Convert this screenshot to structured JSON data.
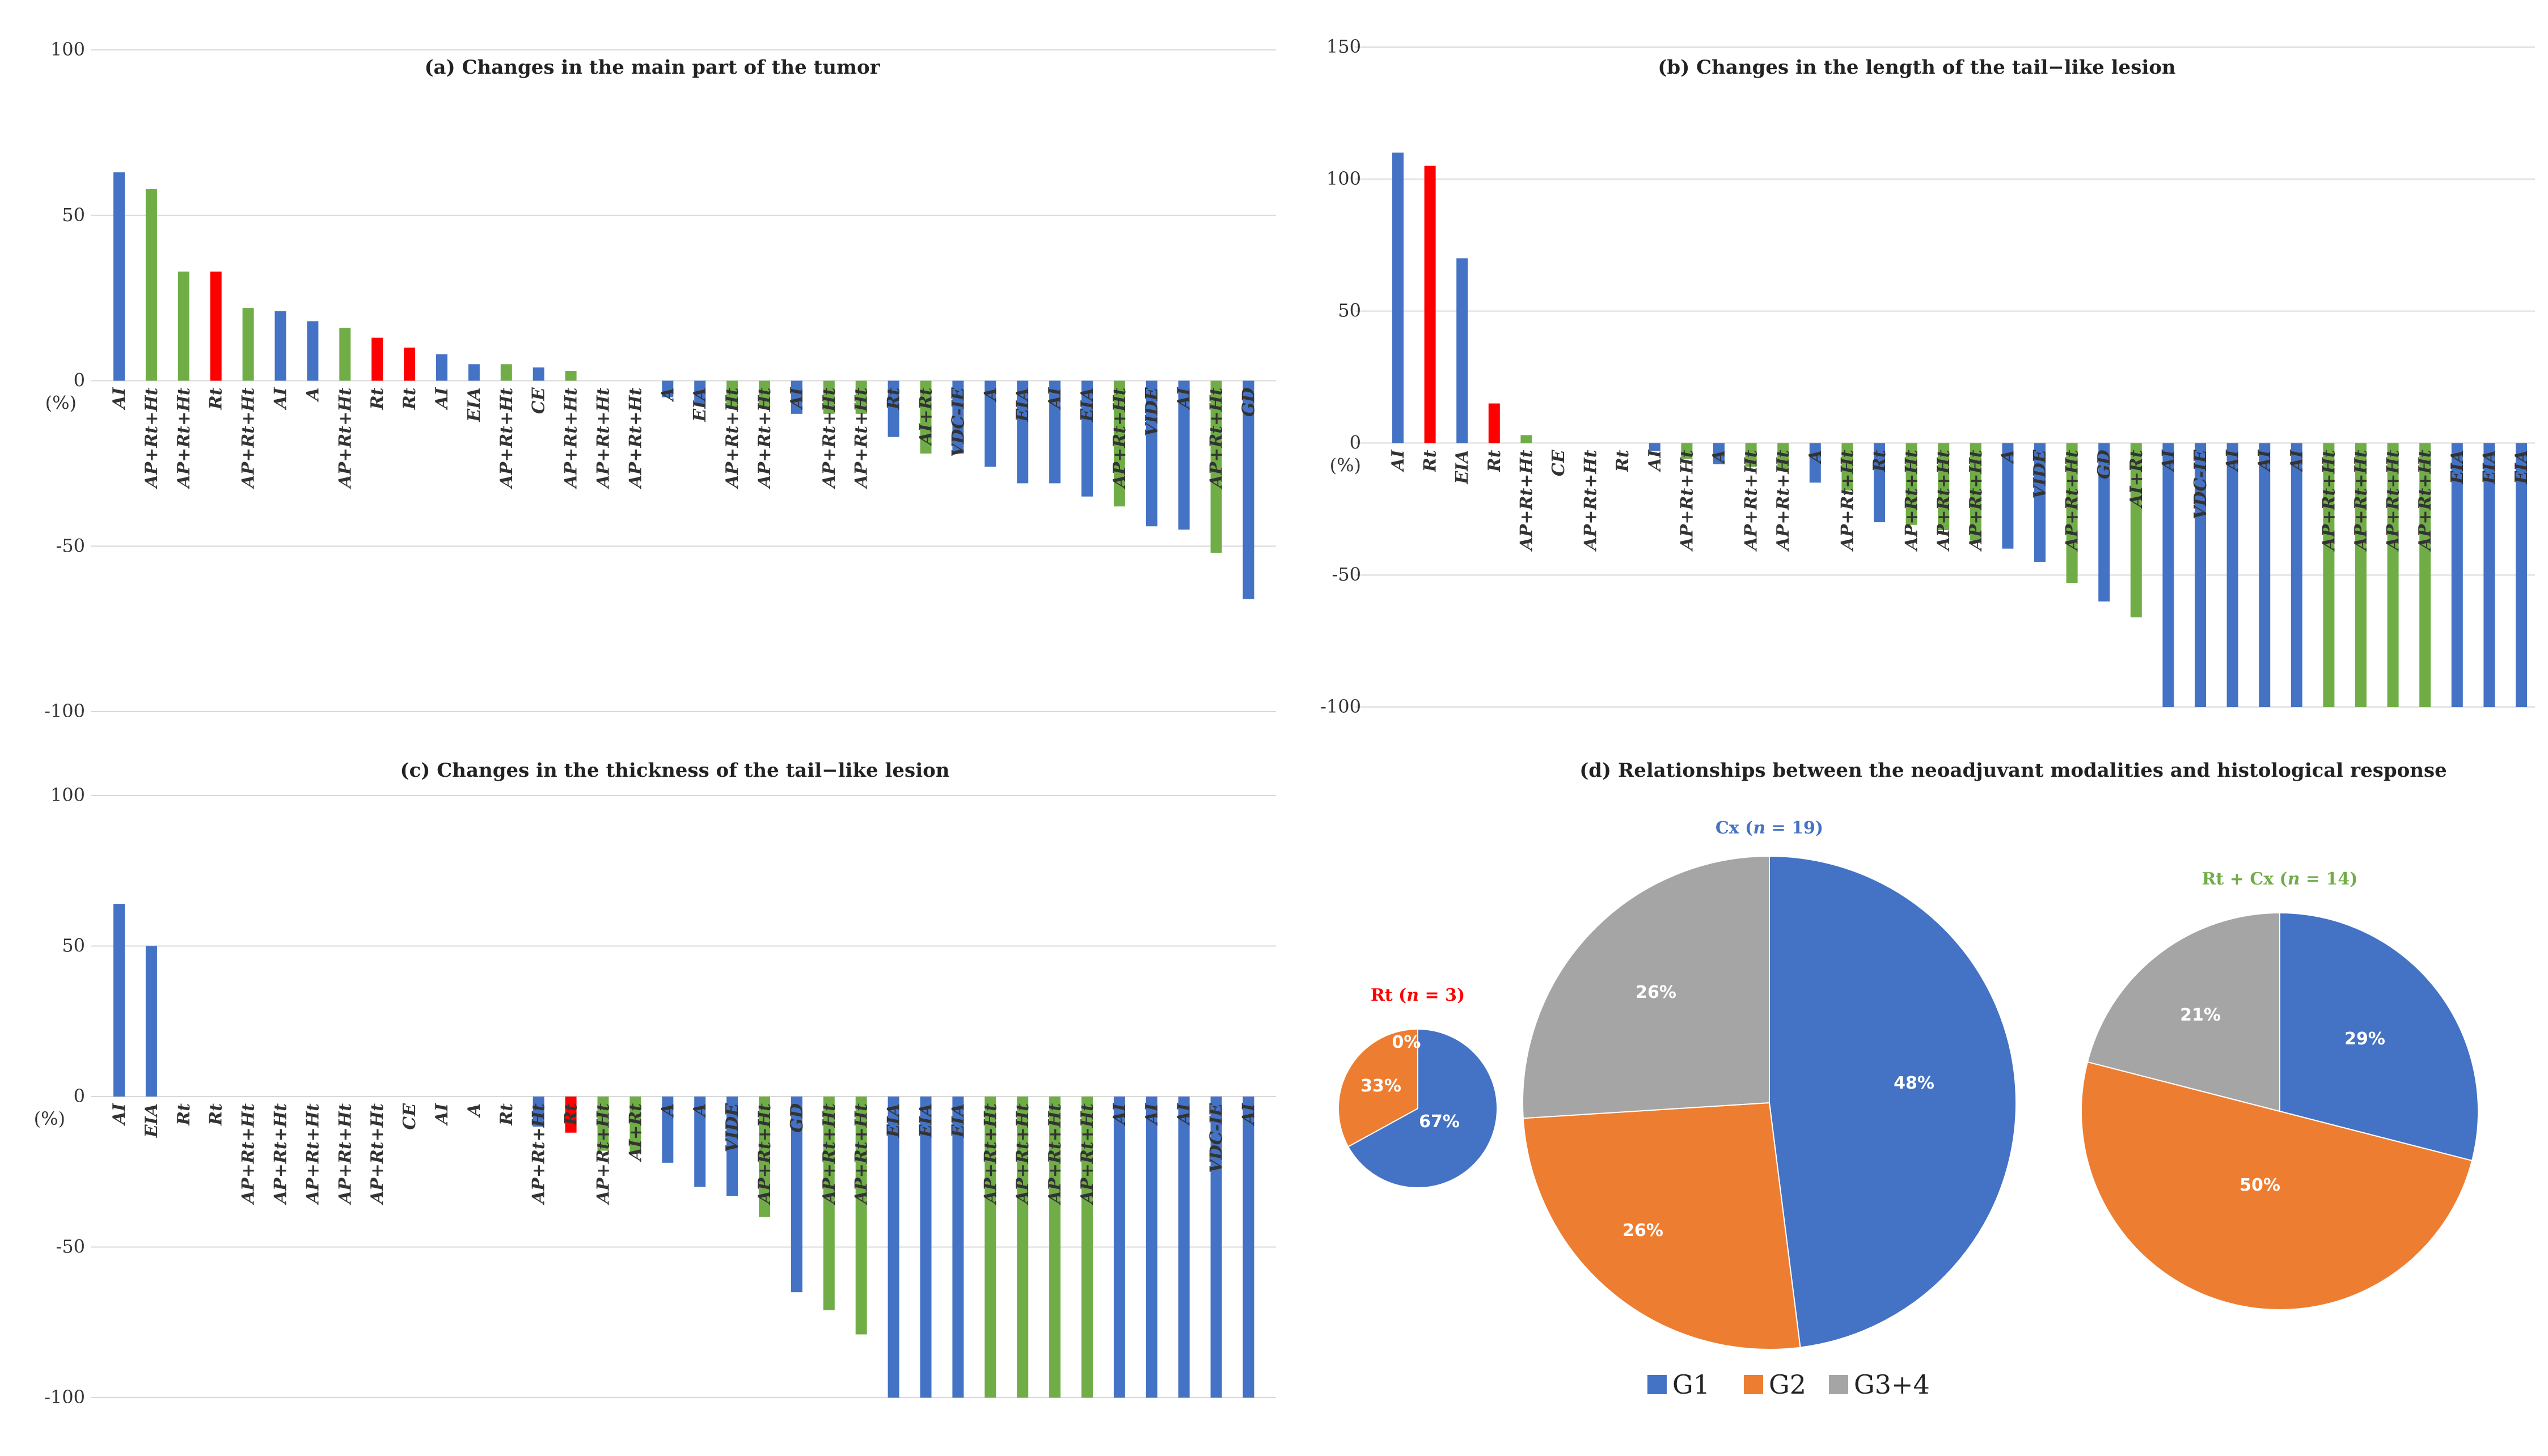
{
  "colors": {
    "blue": "#4472C4",
    "green": "#70AD47",
    "red": "#FF0000",
    "orange": "#ED7D31",
    "gray": "#A5A5A5",
    "grid": "#D9D9D9"
  },
  "unit_label": "(%)",
  "chart_data": [
    {
      "id": "a",
      "type": "bar",
      "title": "(a) Changes in the main part of the tumor",
      "ylim": [
        -100,
        100
      ],
      "yticks": [
        "100",
        "50",
        "0",
        "-50",
        "-100"
      ],
      "tick_values": [
        100,
        50,
        0,
        -50,
        -100
      ],
      "categories": [
        "AI",
        "AP+Rt+Ht",
        "AP+Rt+Ht",
        "Rt",
        "AP+Rt+Ht",
        "AI",
        "A",
        "AP+Rt+Ht",
        "Rt",
        "Rt",
        "AI",
        "EIA",
        "AP+Rt+Ht",
        "CE",
        "AP+Rt+Ht",
        "AP+Rt+Ht",
        "AP+Rt+Ht",
        "A",
        "EIA",
        "AP+Rt+Ht",
        "AP+Rt+Ht",
        "AI",
        "AP+Rt+Ht",
        "AP+Rt+Ht",
        "Rt",
        "AI+Rt",
        "VDC-IE",
        "A",
        "EIA",
        "AI",
        "EIA",
        "AP+Rt+Ht",
        "VIDE",
        "AI",
        "AP+Rt+Ht",
        "GD"
      ],
      "values": [
        63,
        58,
        33,
        33,
        22,
        21,
        18,
        16,
        13,
        10,
        8,
        5,
        5,
        4,
        3,
        0,
        0,
        -5,
        -7,
        -8,
        -8,
        -10,
        -10,
        -10,
        -17,
        -22,
        -22,
        -26,
        -31,
        -31,
        -35,
        -38,
        -44,
        -45,
        -52,
        -66
      ],
      "groups": [
        "blue",
        "green",
        "green",
        "red",
        "green",
        "blue",
        "blue",
        "green",
        "red",
        "red",
        "blue",
        "blue",
        "green",
        "blue",
        "green",
        "green",
        "green",
        "blue",
        "blue",
        "green",
        "green",
        "blue",
        "green",
        "green",
        "blue",
        "green",
        "blue",
        "blue",
        "blue",
        "blue",
        "blue",
        "green",
        "blue",
        "blue",
        "green",
        "blue"
      ]
    },
    {
      "id": "b",
      "type": "bar",
      "title": "(b) Changes in the length of the tail−like lesion",
      "ylim": [
        -100,
        150
      ],
      "yticks": [
        "150",
        "100",
        "50",
        "0",
        "-50",
        "-100"
      ],
      "tick_values": [
        150,
        100,
        50,
        0,
        -50,
        -100
      ],
      "categories": [
        "AI",
        "Rt",
        "EIA",
        "Rt",
        "AP+Rt+Ht",
        "CE",
        "AP+Rt+Ht",
        "Rt",
        "AI",
        "AP+Rt+Ht",
        "A",
        "AP+Rt+Ht",
        "AP+Rt+Ht",
        "A",
        "AP+Rt+Ht",
        "Rt",
        "AP+Rt+Ht",
        "AP+Rt+Ht",
        "AP+Rt+Ht",
        "A",
        "VIDE",
        "AP+Rt+Ht",
        "GD",
        "AI+Rt",
        "AI",
        "VDC-IE",
        "AI",
        "AI",
        "AI",
        "AP+Rt+Ht",
        "AP+Rt+Ht",
        "AP+Rt+Ht",
        "AP+Rt+Ht",
        "EIA",
        "EIA",
        "EIA"
      ],
      "values": [
        110,
        105,
        70,
        15,
        3,
        0,
        0,
        0,
        -3,
        -6,
        -8,
        -9,
        -10,
        -15,
        -18,
        -30,
        -31,
        -33,
        -37,
        -40,
        -45,
        -53,
        -60,
        -66,
        -100,
        -100,
        -100,
        -100,
        -100,
        -100,
        -100,
        -100,
        -100,
        -100,
        -100,
        -100
      ],
      "groups": [
        "blue",
        "red",
        "blue",
        "red",
        "green",
        "blue",
        "green",
        "red",
        "blue",
        "green",
        "blue",
        "green",
        "green",
        "blue",
        "green",
        "blue",
        "green",
        "green",
        "green",
        "blue",
        "blue",
        "green",
        "blue",
        "green",
        "blue",
        "blue",
        "blue",
        "blue",
        "blue",
        "green",
        "green",
        "green",
        "green",
        "blue",
        "blue",
        "blue"
      ]
    },
    {
      "id": "c",
      "type": "bar",
      "title": "(c) Changes in the thickness of the tail−like lesion",
      "ylim": [
        -100,
        100
      ],
      "yticks": [
        "100",
        "50",
        "0",
        "-50",
        "-100"
      ],
      "tick_values": [
        100,
        50,
        0,
        -50,
        -100
      ],
      "categories": [
        "AI",
        "EIA",
        "Rt",
        "Rt",
        "AP+Rt+Ht",
        "AP+Rt+Ht",
        "AP+Rt+Ht",
        "AP+Rt+Ht",
        "AP+Rt+Ht",
        "CE",
        "AI",
        "A",
        "Rt",
        "AP+Rt+Ht",
        "Rt",
        "AP+Rt+Ht",
        "AI+Rt",
        "A",
        "A",
        "VIDE",
        "AP+Rt+Ht",
        "GD",
        "AP+Rt+Ht",
        "AP+Rt+Ht",
        "EIA",
        "EIA",
        "EIA",
        "AP+Rt+Ht",
        "AP+Rt+Ht",
        "AP+Rt+Ht",
        "AP+Rt+Ht",
        "AI",
        "AI",
        "AI",
        "VDC-IE",
        "AI"
      ],
      "values": [
        64,
        50,
        0,
        0,
        0,
        0,
        0,
        0,
        0,
        0,
        0,
        0,
        0,
        -10,
        -12,
        -18,
        -19,
        -22,
        -30,
        -33,
        -40,
        -65,
        -71,
        -79,
        -100,
        -100,
        -100,
        -100,
        -100,
        -100,
        -100,
        -100,
        -100,
        -100,
        -100,
        -100
      ],
      "groups": [
        "blue",
        "blue",
        "red",
        "red",
        "green",
        "green",
        "green",
        "green",
        "green",
        "blue",
        "blue",
        "blue",
        "red",
        "blue",
        "red",
        "green",
        "green",
        "blue",
        "blue",
        "blue",
        "green",
        "blue",
        "green",
        "green",
        "blue",
        "blue",
        "blue",
        "green",
        "green",
        "green",
        "green",
        "blue",
        "blue",
        "blue",
        "blue",
        "blue"
      ]
    },
    {
      "id": "d",
      "type": "pie",
      "title": "(d) Relationships between the neoadjuvant modalities and histological response",
      "legend": [
        "G1",
        "G2",
        "G3+4"
      ],
      "pies": [
        {
          "label_pre": "Rt (",
          "label_n": "n",
          "label_post": " = 3)",
          "label_color": "#FF0000",
          "values": [
            67,
            33,
            0
          ],
          "labels": [
            "67%",
            "33%",
            "0%"
          ]
        },
        {
          "label_pre": "Cx (",
          "label_n": "n",
          "label_post": " = 19)",
          "label_color": "#4472C4",
          "values": [
            48,
            26,
            26
          ],
          "labels": [
            "48%",
            "26%",
            "26%"
          ]
        },
        {
          "label_pre": "Rt + Cx (",
          "label_n": "n",
          "label_post": " = 14)",
          "label_color": "#70AD47",
          "values": [
            29,
            50,
            21
          ],
          "labels": [
            "29%",
            "50%",
            "21%"
          ]
        }
      ]
    }
  ]
}
